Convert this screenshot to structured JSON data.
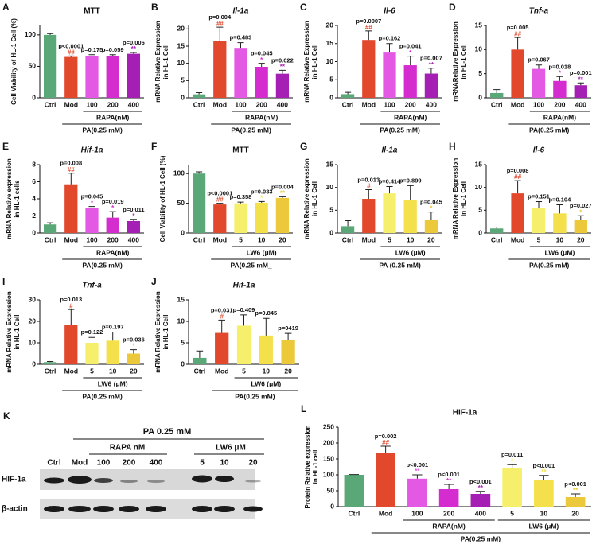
{
  "chart_data": [
    {
      "type": "bar",
      "label": "A",
      "title": "MTT",
      "title_italic": false,
      "ylabel": [
        "Cell Viability of HL-1 Cell (%)"
      ],
      "categories": [
        "Ctrl",
        "Mod",
        "100",
        "200",
        "400"
      ],
      "values": [
        100,
        65,
        67,
        67,
        70
      ],
      "errors": [
        2,
        1.5,
        1.5,
        1.5,
        2
      ],
      "colors": [
        "#5aa777",
        "#e2482b",
        "#e359e3",
        "#d42ccf",
        "#a61fb5"
      ],
      "p_labels": [
        null,
        "p<0.0001",
        "p=0.175",
        "p=0.059",
        "p=0.006"
      ],
      "sig_labels": [
        null,
        "##",
        null,
        null,
        "**"
      ],
      "groups": [
        "RAPA(nM)"
      ],
      "pa_label": "PA(0.25 mM)",
      "ylim": [
        0,
        115
      ],
      "yticks": [
        0,
        50,
        100
      ]
    },
    {
      "type": "bar",
      "label": "B",
      "title": "Il-1a",
      "title_italic": true,
      "ylabel": [
        "mRNA Relative Expression",
        "in HL-1 Cell"
      ],
      "categories": [
        "Ctrl",
        "Mod",
        "100",
        "200",
        "400"
      ],
      "values": [
        1,
        16.5,
        14.5,
        9,
        7
      ],
      "errors": [
        0.5,
        4,
        1.5,
        1,
        1
      ],
      "colors": [
        "#5aa777",
        "#e2482b",
        "#e359e3",
        "#d42ccf",
        "#a61fb5"
      ],
      "p_labels": [
        null,
        "p=0.004",
        "p=0.483",
        "p=0.045",
        "p=0.022"
      ],
      "sig_labels": [
        null,
        "##",
        null,
        "*",
        "**"
      ],
      "groups": [
        "RAPA(nM)"
      ],
      "pa_label": "PA(0.25 mM)",
      "ylim": [
        0,
        21
      ],
      "yticks": [
        0,
        5,
        10,
        15,
        20
      ]
    },
    {
      "type": "bar",
      "label": "C",
      "title": "Il-6",
      "title_italic": true,
      "ylabel": [
        "mRNA Relative Expression",
        "in HL-1 Cell"
      ],
      "categories": [
        "Ctrl",
        "Mod",
        "100",
        "200",
        "400"
      ],
      "values": [
        1,
        16,
        12.5,
        9,
        6.7
      ],
      "errors": [
        0.5,
        2.5,
        2.5,
        2.5,
        1.5
      ],
      "colors": [
        "#5aa777",
        "#e2482b",
        "#e359e3",
        "#d42ccf",
        "#a61fb5"
      ],
      "p_labels": [
        null,
        "p=0.0007",
        "p=0.162",
        "p=0.041",
        "p=0.007"
      ],
      "sig_labels": [
        null,
        "##",
        null,
        "*",
        "**"
      ],
      "groups": [
        "RAPA(nM)"
      ],
      "pa_label": "PA(0.25 mM)",
      "ylim": [
        0,
        20
      ],
      "yticks": [
        0,
        5,
        10,
        15,
        20
      ]
    },
    {
      "type": "bar",
      "label": "D",
      "title": "Tnf-a",
      "title_italic": true,
      "ylabel": [
        "mRNARelative Expression",
        "in HL-1 Cell"
      ],
      "categories": [
        "Ctrl",
        "Mod",
        "100",
        "200",
        "400"
      ],
      "values": [
        1,
        10,
        6,
        3.5,
        2.6
      ],
      "errors": [
        0.7,
        2.5,
        0.8,
        0.9,
        0.5
      ],
      "colors": [
        "#5aa777",
        "#e2482b",
        "#e359e3",
        "#d42ccf",
        "#a61fb5"
      ],
      "p_labels": [
        null,
        "p=0.005",
        "p=0.067",
        "p=0.018",
        "p=0.001"
      ],
      "sig_labels": [
        null,
        "##",
        null,
        "*",
        "**"
      ],
      "groups": [
        "RAPA(nM)"
      ],
      "pa_label": "PA(0.25 mM)",
      "ylim": [
        0,
        15
      ],
      "yticks": [
        0,
        5,
        10,
        15
      ]
    },
    {
      "type": "bar",
      "label": "E",
      "title": "Hif-1a",
      "title_italic": true,
      "ylabel": [
        "mRNA Relative expression",
        "in HL-1 cells"
      ],
      "categories": [
        "Ctrl",
        "Mod",
        "100",
        "200",
        "400"
      ],
      "values": [
        1,
        5.7,
        2.9,
        1.8,
        1.4
      ],
      "errors": [
        0.2,
        1.3,
        0.2,
        0.7,
        0.2
      ],
      "colors": [
        "#5aa777",
        "#e2482b",
        "#e359e3",
        "#d42ccf",
        "#a61fb5"
      ],
      "p_labels": [
        null,
        "p=0.008",
        "p=0.045",
        "p=0.019",
        "p=0.011"
      ],
      "sig_labels": [
        null,
        "##",
        "*",
        "*",
        "*"
      ],
      "groups": [
        "RAPA(nM)"
      ],
      "pa_label": "PA(0.25 mM)",
      "ylim": [
        0,
        8
      ],
      "yticks": [
        0,
        2,
        4,
        6,
        8
      ]
    },
    {
      "type": "bar",
      "label": "F",
      "title": "MTT",
      "title_italic": false,
      "ylabel": [
        "Cell Viability of HL-1 Cell (%)"
      ],
      "categories": [
        "Ctrl",
        "Mod",
        "5",
        "10",
        "20"
      ],
      "values": [
        100,
        48,
        50,
        51,
        59
      ],
      "errors": [
        3,
        2,
        2,
        2,
        2
      ],
      "colors": [
        "#5aa777",
        "#e2482b",
        "#f6ef6b",
        "#f3e04a",
        "#ecc93a"
      ],
      "p_labels": [
        null,
        "p<0.0001",
        "p=0.358",
        "p=0.033",
        "p=0.004"
      ],
      "sig_labels": [
        null,
        "##",
        null,
        "*",
        "**"
      ],
      "groups": [
        "LW6 (μM)"
      ],
      "pa_label": "PA(0.25 mM_",
      "ylim": [
        0,
        115
      ],
      "yticks": [
        0,
        50,
        100
      ]
    },
    {
      "type": "bar",
      "label": "G",
      "title": "Il-1a",
      "title_italic": true,
      "ylabel": [
        "mRNA Relative expression",
        "in HL-1 Cell"
      ],
      "categories": [
        "Ctrl",
        "Mod",
        "5",
        "10",
        "20"
      ],
      "values": [
        1.5,
        7.5,
        8.7,
        7.2,
        2.8
      ],
      "errors": [
        1.2,
        2,
        1.5,
        3.2,
        1.8
      ],
      "colors": [
        "#5aa777",
        "#e2482b",
        "#f6ef6b",
        "#f3e04a",
        "#ecc93a"
      ],
      "p_labels": [
        null,
        "p=0.013",
        "p=0.414",
        "p=0.899",
        "p=0.045"
      ],
      "sig_labels": [
        null,
        "#",
        null,
        null,
        "*"
      ],
      "groups": [
        "LW6 (μM)"
      ],
      "pa_label": "PA (0.25 mM)",
      "ylim": [
        0,
        15
      ],
      "yticks": [
        0,
        5,
        10,
        15
      ]
    },
    {
      "type": "bar",
      "label": "H",
      "title": "Il-6",
      "title_italic": true,
      "ylabel": [
        "mRNA Relative Expression",
        "in HL-1 Cell"
      ],
      "categories": [
        "Ctrl",
        "Mod",
        "5",
        "10",
        "20"
      ],
      "values": [
        1,
        8.7,
        5.4,
        4.3,
        2.8
      ],
      "errors": [
        0.3,
        2.8,
        1.5,
        1.9,
        1
      ],
      "colors": [
        "#5aa777",
        "#e2482b",
        "#f6ef6b",
        "#f3e04a",
        "#ecc93a"
      ],
      "p_labels": [
        null,
        "p=0.008",
        "p=0.151",
        "p=0.104",
        "p=0.027"
      ],
      "sig_labels": [
        null,
        "##",
        null,
        null,
        "*"
      ],
      "groups": [
        "LW6 (μM)"
      ],
      "pa_label": "PA(0.25 mM)",
      "ylim": [
        0,
        15
      ],
      "yticks": [
        0,
        5,
        10,
        15
      ]
    },
    {
      "type": "bar",
      "label": "I",
      "title": "Tnf-a",
      "title_italic": true,
      "ylabel": [
        "mRNA Relative Expression",
        "in HL-1 Cell"
      ],
      "categories": [
        "Ctrl",
        "Mod",
        "5",
        "10",
        "20"
      ],
      "values": [
        1,
        18.5,
        10,
        11,
        5
      ],
      "errors": [
        0.3,
        7,
        2.5,
        4,
        1.8
      ],
      "colors": [
        "#5aa777",
        "#e2482b",
        "#f6ef6b",
        "#f3e04a",
        "#ecc93a"
      ],
      "p_labels": [
        null,
        "p=0.013",
        "p=0.122",
        "p=0.197",
        "p=0.036"
      ],
      "sig_labels": [
        null,
        "#",
        null,
        null,
        "*"
      ],
      "groups": [
        "LW6 (μM)"
      ],
      "pa_label": "PA(0.25 mM)",
      "ylim": [
        0,
        30
      ],
      "yticks": [
        0,
        10,
        20,
        30
      ]
    },
    {
      "type": "bar",
      "label": "J",
      "title": "Hif-1a",
      "title_italic": true,
      "ylabel": [
        "mRNA Relative Expression",
        "in HL-1 Cell"
      ],
      "categories": [
        "Ctrl",
        "Mod",
        "5",
        "10",
        "20"
      ],
      "values": [
        1.5,
        7.3,
        9,
        6.7,
        5.6
      ],
      "errors": [
        1.6,
        3,
        2.5,
        4,
        1.6
      ],
      "colors": [
        "#5aa777",
        "#e2482b",
        "#f6ef6b",
        "#f3e04a",
        "#ecc93a"
      ],
      "p_labels": [
        null,
        "p=0.031",
        "p=0.409",
        "p=0.845",
        "p=0419"
      ],
      "sig_labels": [
        null,
        "#",
        null,
        null,
        null
      ],
      "groups": [
        "LW6 (μM)"
      ],
      "pa_label": "PA(0.25 mM)",
      "ylim": [
        0,
        15
      ],
      "yticks": [
        0,
        5,
        10,
        15
      ]
    },
    {
      "type": "bar",
      "label": "L",
      "title": "HIF-1a",
      "title_italic": false,
      "ylabel": [
        "Protein Relative expression",
        "in HL-1 cell"
      ],
      "categories": [
        "Ctrl",
        "Mod",
        "100",
        "200",
        "400",
        "5",
        "10",
        "20"
      ],
      "values": [
        100,
        168,
        88,
        55,
        40,
        120,
        83,
        30
      ],
      "errors": [
        1,
        22,
        12,
        15,
        8,
        12,
        15,
        10
      ],
      "colors": [
        "#5aa777",
        "#e2482b",
        "#e359e3",
        "#d42ccf",
        "#a61fb5",
        "#f6ef6b",
        "#f3e04a",
        "#ecc93a"
      ],
      "p_labels": [
        null,
        "p=0.002",
        "p<0.001",
        "p<0.001",
        "p<0.001",
        "p=0.011",
        "p<0.001",
        "p<0.001"
      ],
      "sig_labels": [
        null,
        "##",
        "**",
        "**",
        "**",
        "*",
        "**",
        "**"
      ],
      "groups": [
        "RAPA(nM)",
        "LW6 (μM)"
      ],
      "pa_label": "PA(0.25 mM)",
      "ylim": [
        0,
        250
      ],
      "yticks": [
        0,
        50,
        100,
        150,
        200,
        250
      ]
    }
  ],
  "blot": {
    "label": "K",
    "header": "PA  0.25 mM",
    "groups": [
      "RAPA  nM",
      "LW6  μM"
    ],
    "lanes": [
      "Ctrl",
      "Mod",
      "100",
      "200",
      "400",
      "5",
      "10",
      "20"
    ],
    "rows": [
      "HIF-1a",
      "β-actin"
    ]
  }
}
